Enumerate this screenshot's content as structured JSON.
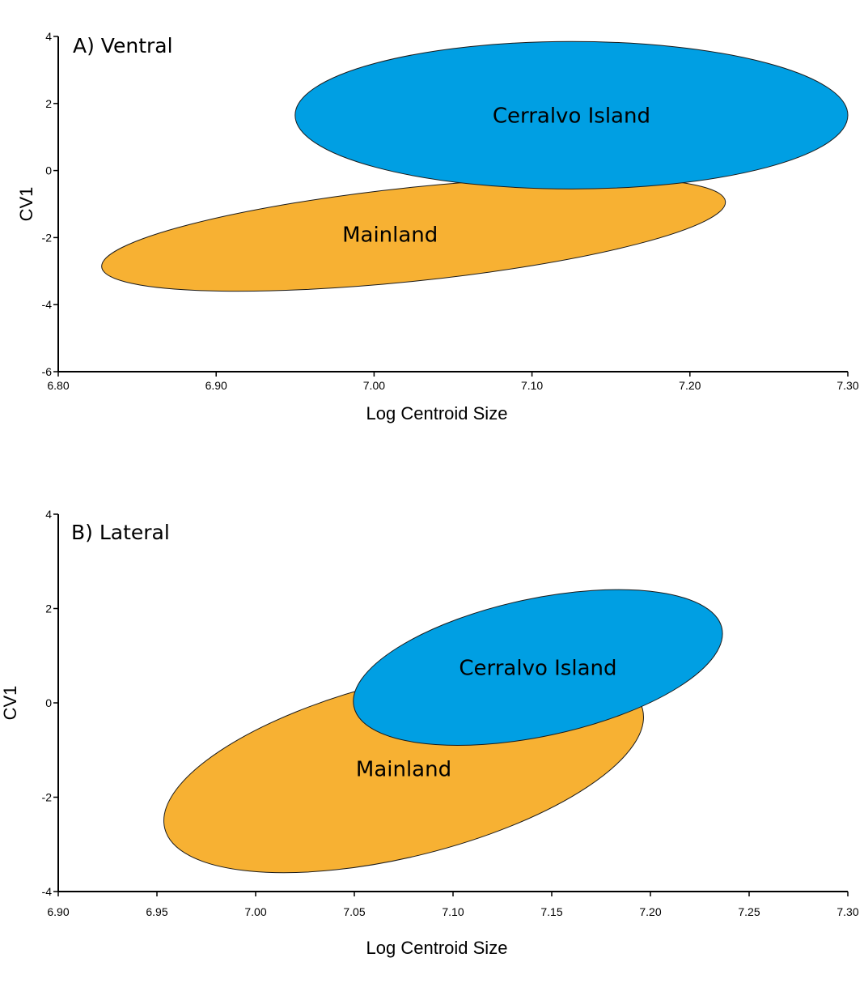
{
  "chart_data": [
    {
      "type": "scatter",
      "panel_title": "A) Ventral",
      "xlabel": "Log Centroid Size",
      "ylabel": "CV1",
      "xlim": [
        6.8,
        7.3
      ],
      "ylim": [
        -6,
        4
      ],
      "x_ticks": [
        6.8,
        6.9,
        7.0,
        7.1,
        7.2,
        7.3
      ],
      "x_tick_labels": [
        "6.80",
        "6.90",
        "7.00",
        "7.10",
        "7.20",
        "7.30"
      ],
      "y_ticks": [
        4,
        2,
        0,
        -2,
        -4,
        -6
      ],
      "y_tick_labels": [
        "4",
        "2",
        "0",
        "-2",
        "-4",
        "-6"
      ],
      "grid": false,
      "ellipses": [
        {
          "label": "Mainland",
          "color": "#F7B133",
          "cx": 7.025,
          "cy": -1.9,
          "x_min": 6.83,
          "x_max": 7.225,
          "y_min": -3.5,
          "y_max": -0.1,
          "angle_deg": -6.0
        },
        {
          "label": "Cerralvo Island",
          "color": "#009FE3",
          "cx": 7.125,
          "cy": 1.65,
          "x_min": 6.95,
          "x_max": 7.3,
          "y_min": -0.5,
          "y_max": 3.9,
          "angle_deg": 0.0
        }
      ]
    },
    {
      "type": "scatter",
      "panel_title": "B) Lateral",
      "xlabel": "Log Centroid Size",
      "ylabel": "CV1",
      "xlim": [
        6.9,
        7.3
      ],
      "ylim": [
        -4,
        4
      ],
      "x_ticks": [
        6.9,
        6.95,
        7.0,
        7.05,
        7.1,
        7.15,
        7.2,
        7.25,
        7.3
      ],
      "x_tick_labels": [
        "6.90",
        "6.95",
        "7.00",
        "7.05",
        "7.10",
        "7.15",
        "7.20",
        "7.25",
        "7.30"
      ],
      "y_ticks": [
        4,
        2,
        0,
        -2,
        -4
      ],
      "y_tick_labels": [
        "4",
        "2",
        "0",
        "-2",
        "-4"
      ],
      "grid": false,
      "ellipses": [
        {
          "label": "Mainland",
          "color": "#F7B133",
          "cx": 7.075,
          "cy": -1.4,
          "x_min": 6.955,
          "x_max": 7.198,
          "y_min": -3.6,
          "y_max": 0.8,
          "angle_deg": -14.0
        },
        {
          "label": "Cerralvo Island",
          "color": "#009FE3",
          "cx": 7.143,
          "cy": 0.75,
          "x_min": 7.06,
          "x_max": 7.247,
          "y_min": -0.9,
          "y_max": 2.4,
          "angle_deg": -12.0
        }
      ]
    }
  ]
}
